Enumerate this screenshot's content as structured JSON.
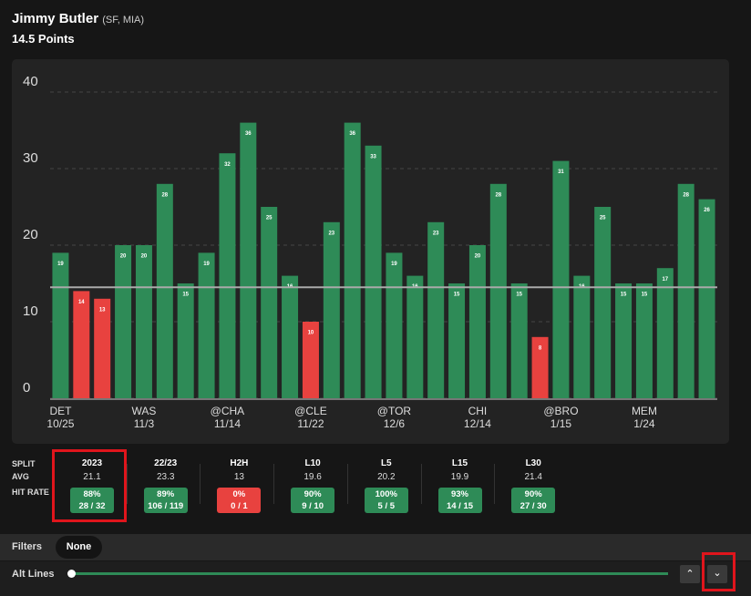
{
  "header": {
    "name": "Jimmy Butler",
    "team": "(SF, MIA)",
    "market": "14.5 Points"
  },
  "chart_data": {
    "type": "bar",
    "categories": [
      "DET",
      null,
      null,
      null,
      "WAS",
      null,
      null,
      null,
      "@CHA",
      null,
      null,
      null,
      "@CLE",
      null,
      null,
      null,
      "@TOR",
      null,
      null,
      null,
      "CHI",
      null,
      null,
      null,
      "@BRO",
      null,
      null,
      null,
      "MEM",
      null,
      null,
      null
    ],
    "dates": [
      "10/25",
      null,
      null,
      null,
      "11/3",
      null,
      null,
      null,
      "11/14",
      null,
      null,
      null,
      "11/22",
      null,
      null,
      null,
      "12/6",
      null,
      null,
      null,
      "12/14",
      null,
      null,
      null,
      "1/15",
      null,
      null,
      null,
      "1/24",
      null,
      null,
      null
    ],
    "values": [
      19,
      14,
      13,
      20,
      20,
      28,
      15,
      19,
      32,
      36,
      25,
      16,
      10,
      23,
      36,
      33,
      19,
      16,
      23,
      15,
      20,
      28,
      15,
      8,
      31,
      16,
      25,
      15,
      15,
      17,
      28,
      26
    ],
    "threshold": 14.5,
    "color": "#2e8b57",
    "below_color": "#e8423f",
    "ylim": [
      0,
      40
    ],
    "yticks": [
      0,
      10,
      20,
      30,
      40
    ],
    "grid": true
  },
  "splits": {
    "row_labels": [
      "SPLIT",
      "AVG",
      "HIT RATE"
    ],
    "columns": [
      {
        "name": "2023",
        "avg": "21.1",
        "rate": "88%",
        "count": "28 / 32",
        "color": "#2e8b57"
      },
      {
        "name": "22/23",
        "avg": "23.3",
        "rate": "89%",
        "count": "106 / 119",
        "color": "#2e8b57"
      },
      {
        "name": "H2H",
        "avg": "13",
        "rate": "0%",
        "count": "0 / 1",
        "color": "#e8423f"
      },
      {
        "name": "L10",
        "avg": "19.6",
        "rate": "90%",
        "count": "9 / 10",
        "color": "#2e8b57"
      },
      {
        "name": "L5",
        "avg": "20.2",
        "rate": "100%",
        "count": "5 / 5",
        "color": "#2e8b57"
      },
      {
        "name": "L15",
        "avg": "19.9",
        "rate": "93%",
        "count": "14 / 15",
        "color": "#2e8b57"
      },
      {
        "name": "L30",
        "avg": "21.4",
        "rate": "90%",
        "count": "27 / 30",
        "color": "#2e8b57"
      }
    ]
  },
  "filters": {
    "label": "Filters",
    "value": "None"
  },
  "alt_lines": {
    "label": "Alt Lines"
  }
}
